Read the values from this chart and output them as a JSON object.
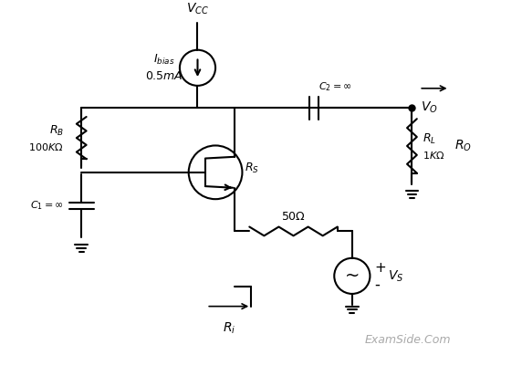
{
  "bg_color": "#ffffff",
  "line_color": "#000000",
  "text_color": "#000000",
  "examside_color": "#aaaaaa",
  "fig_width": 5.72,
  "fig_height": 4.12,
  "dpi": 100
}
